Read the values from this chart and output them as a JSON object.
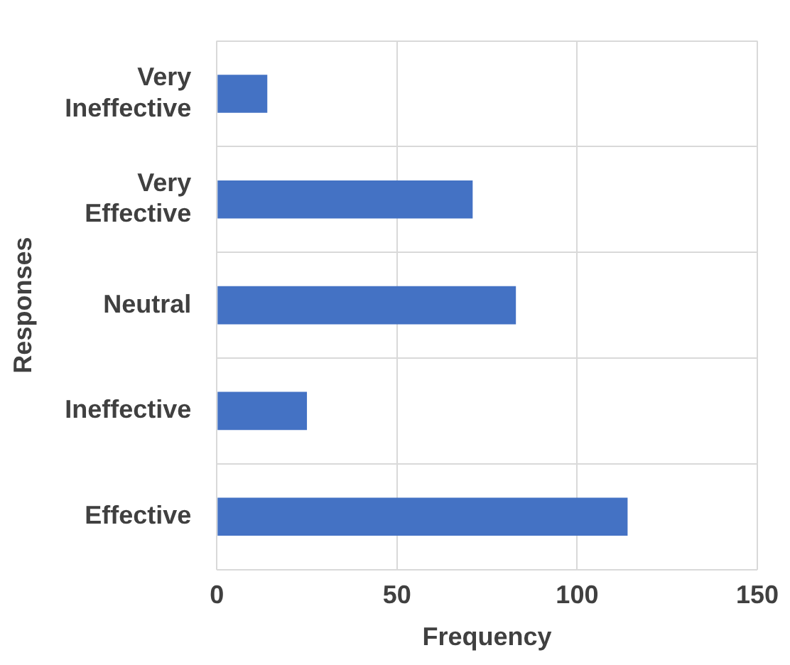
{
  "chart_data": {
    "type": "bar",
    "orientation": "horizontal",
    "xlabel": "Frequency",
    "ylabel": "Responses",
    "categories": [
      "Very Ineffective",
      "Very Effective",
      "Neutral",
      "Ineffective",
      "Effective"
    ],
    "values": [
      14,
      71,
      83,
      25,
      114
    ],
    "color": "#4472c4",
    "xlim": [
      0,
      150
    ],
    "xticks": [
      0,
      50,
      100,
      150
    ],
    "grid": true
  }
}
